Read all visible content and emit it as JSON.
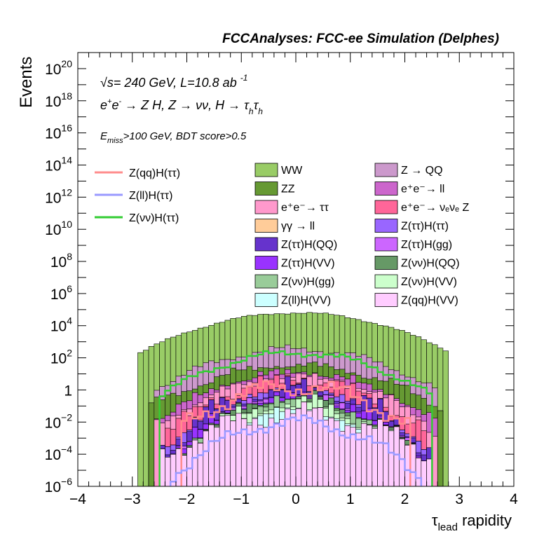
{
  "chart_data": {
    "type": "bar",
    "title": "FCCAnalyses: FCC-ee Simulation (Delphes)",
    "xlabel": {
      "main": "τ",
      "sub": "lead",
      "rest": " rapidity"
    },
    "ylabel": "Events",
    "xlim": [
      -4,
      4
    ],
    "ylim": [
      1e-06,
      1e+21
    ],
    "ylog": true,
    "x_ticks": [
      "−4",
      "−3",
      "−2",
      "−1",
      "0",
      "1",
      "2",
      "3",
      "4"
    ],
    "y_ticks": [
      {
        "exp": -6,
        "base": "10",
        "sup": "−6"
      },
      {
        "exp": -4,
        "base": "10",
        "sup": "−4"
      },
      {
        "exp": -2,
        "base": "10",
        "sup": "−2"
      },
      {
        "exp": 0,
        "base": "1",
        "sup": ""
      },
      {
        "exp": 2,
        "base": "10",
        "sup": "2"
      },
      {
        "exp": 4,
        "base": "10",
        "sup": "4"
      },
      {
        "exp": 6,
        "base": "10",
        "sup": "6"
      },
      {
        "exp": 8,
        "base": "10",
        "sup": "8"
      },
      {
        "exp": 10,
        "base": "10",
        "sup": "10"
      },
      {
        "exp": 12,
        "base": "10",
        "sup": "12"
      },
      {
        "exp": 14,
        "base": "10",
        "sup": "14"
      },
      {
        "exp": 16,
        "base": "10",
        "sup": "16"
      },
      {
        "exp": 18,
        "base": "10",
        "sup": "18"
      },
      {
        "exp": 20,
        "base": "10",
        "sup": "20"
      }
    ],
    "annotations": {
      "energy": "= 240 GeV, L=10.8 ab",
      "energy_sqrt": "√s",
      "energy_sup": "-1",
      "process_lead": "e",
      "process_sup1": "+",
      "process_e2": "e",
      "process_sup2": "-",
      "process_main": " → Z H, Z  → νν, H  → τ",
      "process_sub1": "h",
      "process_tau2": "τ",
      "process_sub2": "h",
      "selection_main": "E",
      "selection_sub": "miss",
      "selection_rest": ">100 GeV, BDT score>0.5"
    },
    "legend_placement": "inside top",
    "legend_lines": [
      {
        "name": "Z(qq)H(ττ)",
        "color": "#ff8c8c"
      },
      {
        "name": "Z(ll)H(ττ)",
        "color": "#9999ff"
      },
      {
        "name": "Z(νν)H(ττ)",
        "color": "#33cc33"
      }
    ],
    "legend_stack": [
      {
        "name": "WW",
        "color": "#99cc66"
      },
      {
        "name": "Z → QQ",
        "color": "#cc99cc"
      },
      {
        "name": "ZZ",
        "color": "#669933"
      },
      {
        "name": "e⁺e⁻→ ll",
        "color": "#cc66cc"
      },
      {
        "name": "e⁺e⁻→ ττ",
        "color": "#ff99cc"
      },
      {
        "name": "e⁺e⁻→ νₑνₑ Z",
        "color": "#ff6699"
      },
      {
        "name": "γγ → ll",
        "color": "#ffcc99"
      },
      {
        "name": "Z(ττ)H(ττ)",
        "color": "#9966ff"
      },
      {
        "name": "Z(ττ)H(QQ)",
        "color": "#6633cc"
      },
      {
        "name": "Z(ττ)H(gg)",
        "color": "#cc66ff"
      },
      {
        "name": "Z(ττ)H(VV)",
        "color": "#9933ff"
      },
      {
        "name": "Z(νν)H(QQ)",
        "color": "#669966"
      },
      {
        "name": "Z(νν)H(gg)",
        "color": "#99cc99"
      },
      {
        "name": "Z(νν)H(VV)",
        "color": "#ccffcc"
      },
      {
        "name": "Z(ll)H(VV)",
        "color": "#ccffff"
      },
      {
        "name": "Z(qq)H(VV)",
        "color": "#ffccff"
      }
    ],
    "bins": {
      "xmin": -4,
      "xmax": 4,
      "n": 80
    },
    "stack_series": [
      {
        "name": "Z(qq)H(VV)",
        "color": "#ffccff",
        "range": [
          -2.5,
          2.5
        ],
        "peak_exp": -1.5,
        "width": 1.6,
        "jitter": 0.5
      },
      {
        "name": "Z(ll)H(VV)",
        "color": "#ccffff",
        "range": [
          -1.6,
          1.6
        ],
        "peak_exp": -1.8,
        "width": 0.9,
        "jitter": 0.6
      },
      {
        "name": "Z(νν)H(VV)",
        "color": "#ccffcc",
        "range": [
          -2.1,
          2.1
        ],
        "peak_exp": -1.1,
        "width": 1.1,
        "jitter": 0.6
      },
      {
        "name": "Z(νν)H(gg)",
        "color": "#99cc99",
        "range": [
          -1.9,
          1.9
        ],
        "peak_exp": -1.3,
        "width": 1.1,
        "jitter": 0.6
      },
      {
        "name": "Z(νν)H(QQ)",
        "color": "#669966",
        "range": [
          -2.2,
          2.2
        ],
        "peak_exp": -1.2,
        "width": 1.2,
        "jitter": 0.6
      },
      {
        "name": "Z(ττ)H(VV)",
        "color": "#9933ff",
        "range": [
          -2.3,
          2.3
        ],
        "peak_exp": -1.1,
        "width": 1.3,
        "jitter": 0.7
      },
      {
        "name": "Z(ττ)H(gg)",
        "color": "#cc66ff",
        "range": [
          -2.2,
          2.2
        ],
        "peak_exp": -1.3,
        "width": 1.2,
        "jitter": 0.7
      },
      {
        "name": "Z(ττ)H(QQ)",
        "color": "#6633cc",
        "range": [
          -2.5,
          2.5
        ],
        "peak_exp": -0.4,
        "width": 1.4,
        "jitter": 0.8
      },
      {
        "name": "Z(ττ)H(ττ)",
        "color": "#9966ff",
        "range": [
          -2.4,
          2.4
        ],
        "peak_exp": -0.9,
        "width": 1.3,
        "jitter": 0.6
      },
      {
        "name": "γγ → ll",
        "color": "#ffcc99",
        "range": [
          -1.0,
          1.2
        ],
        "peak_exp": -2.0,
        "width": 0.7,
        "jitter": 0.8
      },
      {
        "name": "e⁺e⁻→ νₑνₑ Z",
        "color": "#ff6699",
        "range": [
          -2.4,
          2.4
        ],
        "peak_exp": 0.3,
        "width": 1.4,
        "jitter": 0.5
      },
      {
        "name": "e⁺e⁻→ ττ",
        "color": "#ff99cc",
        "range": [
          -2.6,
          2.6
        ],
        "peak_exp": 0.4,
        "width": 1.6,
        "jitter": 0.4
      },
      {
        "name": "e⁺e⁻→ ll",
        "color": "#cc66cc",
        "range": [
          -2.6,
          2.6
        ],
        "peak_exp": 0.6,
        "width": 1.6,
        "jitter": 0.4
      },
      {
        "name": "ZZ",
        "color": "#669933",
        "range": [
          -2.7,
          2.7
        ],
        "peak_exp": 1.3,
        "width": 1.8,
        "jitter": 0.3
      },
      {
        "name": "Z → QQ",
        "color": "#cc99cc",
        "range": [
          -2.6,
          2.6
        ],
        "peak_exp": 2.5,
        "width": 1.7,
        "jitter": 0.2
      },
      {
        "name": "WW",
        "color": "#99cc66",
        "range": [
          -2.9,
          2.8
        ],
        "peak_exp": 4.8,
        "width": 1.9,
        "jitter": 0.05
      }
    ],
    "line_series": [
      {
        "name": "Z(qq)H(ττ)",
        "color": "#ff8c8c",
        "range": [
          -2.1,
          2.1
        ],
        "peak_exp": 0.2,
        "width": 1.4,
        "jitter": 0.4
      },
      {
        "name": "Z(ll)H(ττ)",
        "color": "#9999ff",
        "range": [
          -2.3,
          2.3
        ],
        "peak_exp": -2.0,
        "width": 1.3,
        "jitter": 0.3
      },
      {
        "name": "Z(νν)H(ττ)",
        "color": "#33cc33",
        "range": [
          -2.5,
          2.5
        ],
        "peak_exp": 2.3,
        "width": 1.6,
        "jitter": 0.15
      }
    ],
    "grid": false
  }
}
